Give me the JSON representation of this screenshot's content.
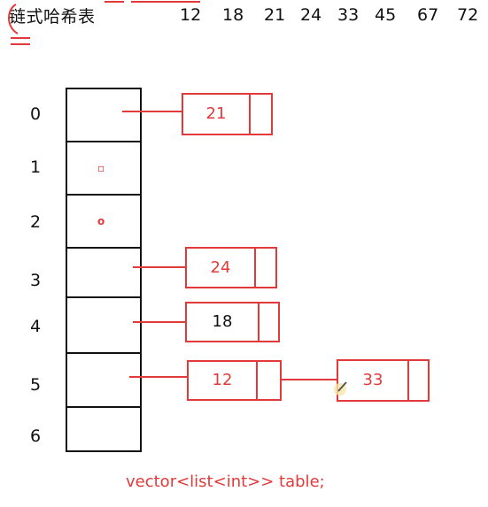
{
  "title": "链式哈希表",
  "keys": [
    "12",
    "18",
    "21",
    "24",
    "33",
    "45",
    "67",
    "72"
  ],
  "buckets": [
    "0",
    "1",
    "2",
    "3",
    "4",
    "5",
    "6"
  ],
  "nodes": {
    "n21": "21",
    "n24": "24",
    "n18": "18",
    "n12": "12",
    "n33": "33"
  },
  "caption": "vector<list<int>>  table;",
  "colors": {
    "ink": "#111111",
    "annotation": "#e23a3a"
  }
}
